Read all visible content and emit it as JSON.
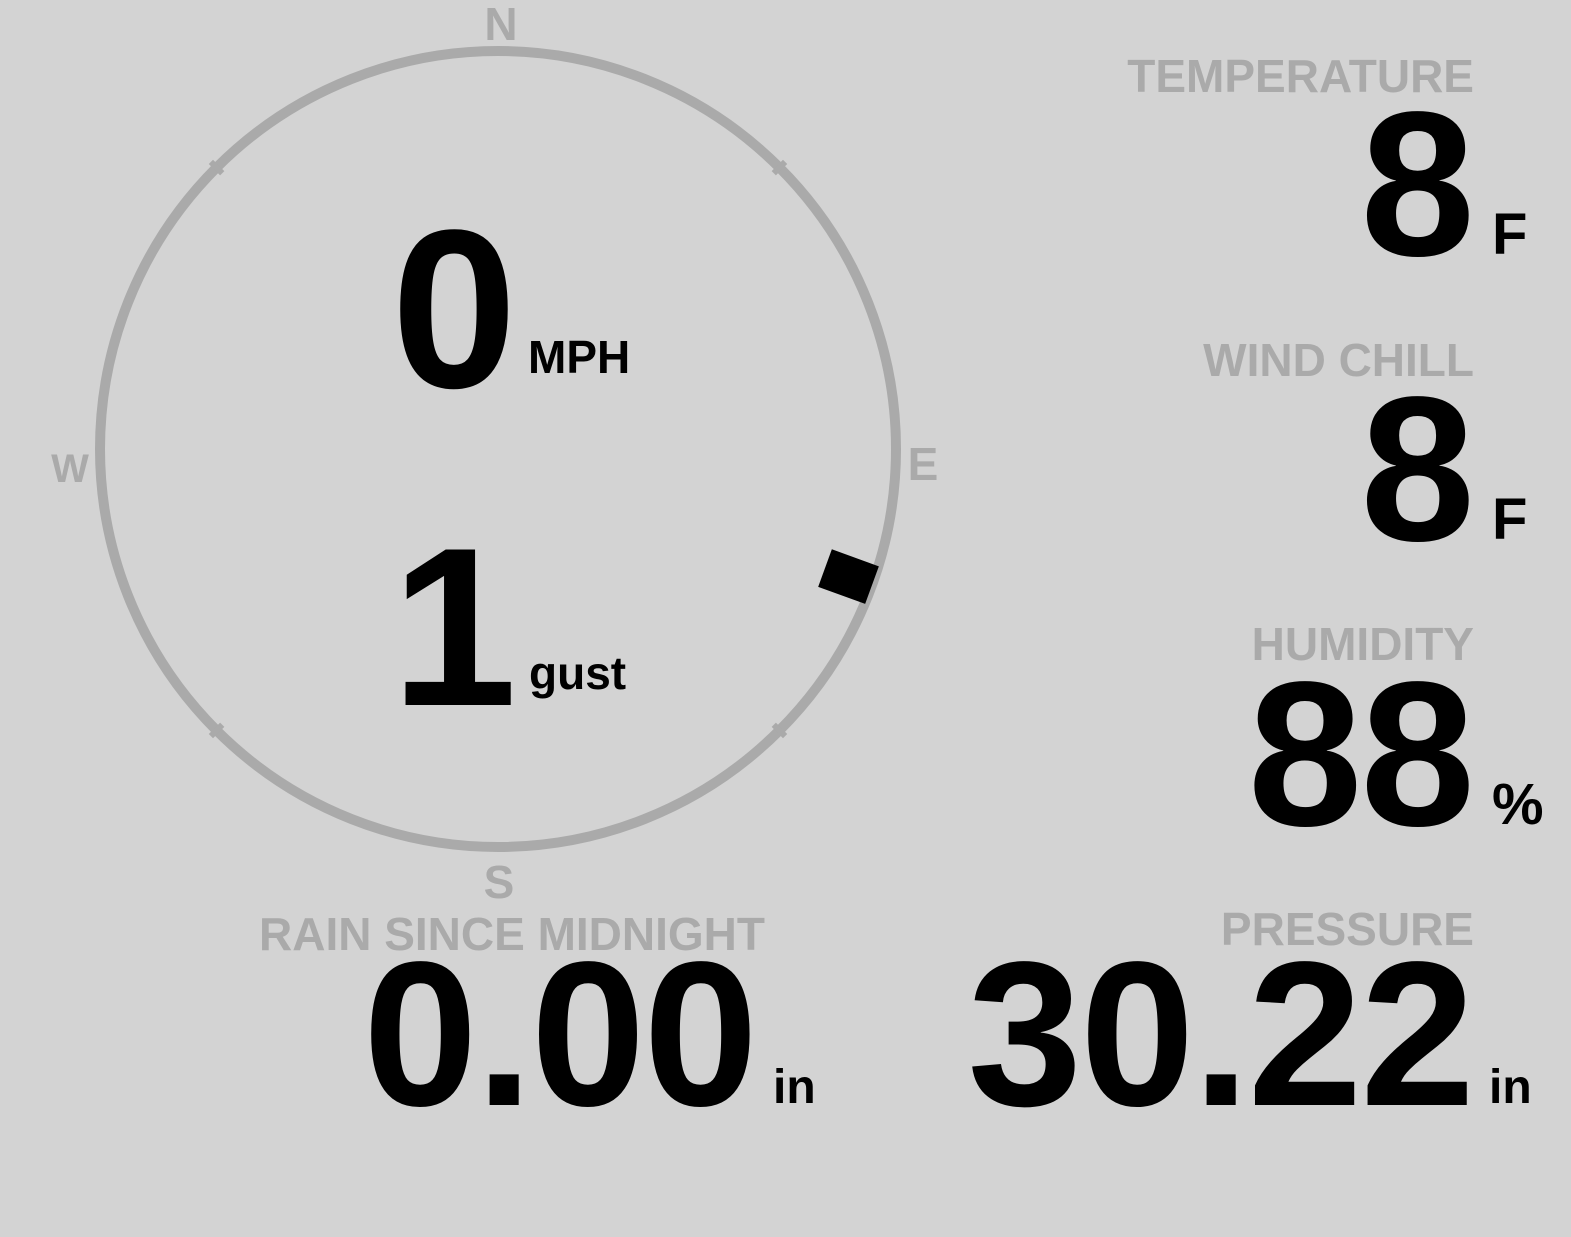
{
  "wind": {
    "speed": "0",
    "speed_unit": "MPH",
    "gust": "1",
    "gust_unit": "gust",
    "direction_degrees": 110,
    "cardinals": {
      "n": "N",
      "e": "E",
      "s": "S",
      "w": "W"
    }
  },
  "temperature": {
    "label": "TEMPERATURE",
    "value": "8",
    "unit": "F"
  },
  "wind_chill": {
    "label": "WIND CHILL",
    "value": "8",
    "unit": "F"
  },
  "humidity": {
    "label": "HUMIDITY",
    "value": "88",
    "unit": "%"
  },
  "pressure": {
    "label": "PRESSURE",
    "value": "30.22",
    "unit": "in"
  },
  "rain": {
    "label": "RAIN SINCE MIDNIGHT",
    "value": "0.00",
    "unit": "in"
  },
  "colors": {
    "background": "#d3d3d3",
    "muted": "#aaaaaa",
    "value": "#000000"
  }
}
